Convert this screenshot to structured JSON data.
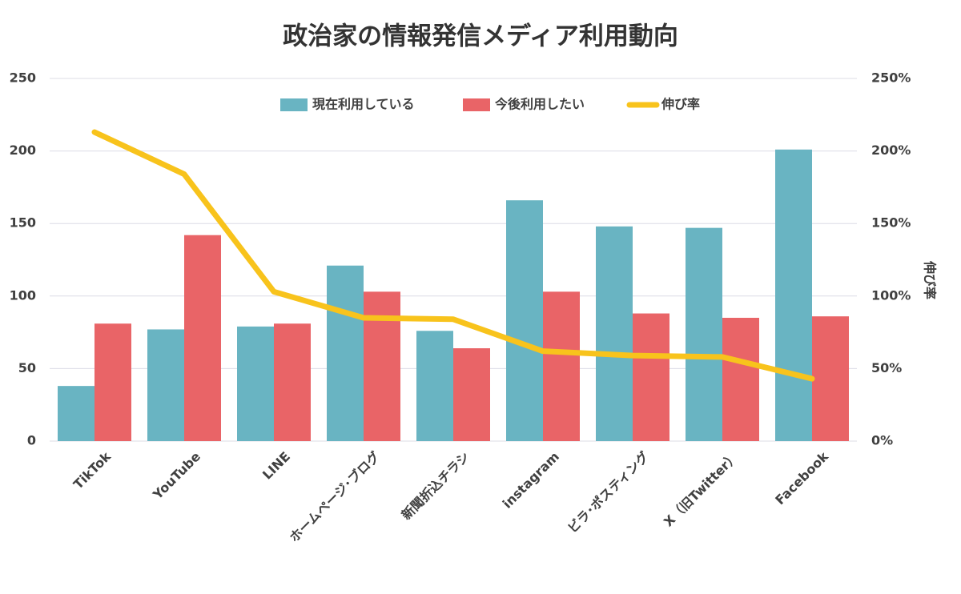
{
  "chart_data": {
    "type": "bar",
    "title": "政治家の情報発信メディア利用動向",
    "categories": [
      "TikTok",
      "YouTube",
      "LINE",
      "ホームページ･ブログ",
      "新聞折込チラシ",
      "instagram",
      "ビラ･ポスティング",
      "X（旧Twitter）",
      "Facebook"
    ],
    "series": [
      {
        "name": "現在利用している",
        "color": "#69b4c2",
        "values": [
          38,
          77,
          79,
          121,
          76,
          166,
          148,
          147,
          201
        ]
      },
      {
        "name": "今後利用したい",
        "color": "#e96467",
        "values": [
          81,
          142,
          81,
          103,
          64,
          103,
          88,
          85,
          86
        ]
      },
      {
        "name": "伸び率",
        "type": "line",
        "axis": "y2",
        "color": "#f8c31c",
        "values": [
          213,
          184,
          103,
          85,
          84,
          62,
          59,
          58,
          43
        ]
      }
    ],
    "ylim": [
      0,
      250
    ],
    "yticks": [
      0,
      50,
      100,
      150,
      200,
      250
    ],
    "y2lim": [
      0,
      250
    ],
    "y2ticks": [
      {
        "value": 0,
        "label": "0%"
      },
      {
        "value": 50,
        "label": "50%"
      },
      {
        "value": 100,
        "label": "100%"
      },
      {
        "value": 150,
        "label": "150%"
      },
      {
        "value": 200,
        "label": "200%"
      },
      {
        "value": 250,
        "label": "250%"
      }
    ],
    "y2label": "伸び率",
    "grid": true,
    "legend": "top"
  }
}
